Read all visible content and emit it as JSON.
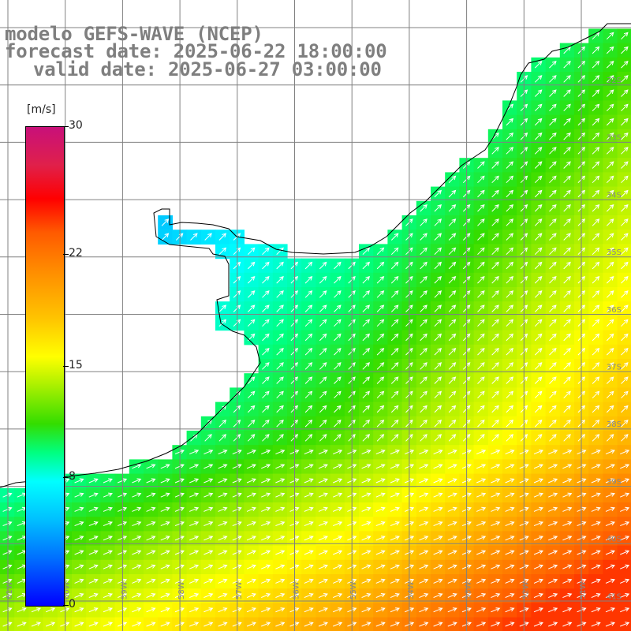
{
  "title": {
    "line1": "modelo GEFS-WAVE (NCEP)",
    "line2": "forecast date: 2025-06-22 18:00:00",
    "line3": "valid date: 2025-06-27 03:00:00"
  },
  "colorbar": {
    "unit": "[m/s]",
    "ticks": [
      "30",
      "22",
      "15",
      "8",
      "0"
    ],
    "tick_values": [
      30,
      22,
      15,
      8,
      0
    ],
    "range": [
      0,
      30
    ],
    "colors": [
      "#0000ff",
      "#0070ff",
      "#00c0ff",
      "#00ffff",
      "#00ff80",
      "#33dd00",
      "#aaf000",
      "#ffff00",
      "#ffc400",
      "#ff8c00",
      "#ff5a00",
      "#ff0000",
      "#e0204a",
      "#c8107a"
    ]
  },
  "map": {
    "lon_range": [
      -61,
      -50
    ],
    "lat_range": [
      -41,
      -30
    ],
    "lat_labels": [
      "32S",
      "33S",
      "34S",
      "35S",
      "36S",
      "37S",
      "38S",
      "39S",
      "40S",
      "41S"
    ],
    "lon_labels": [
      "61W",
      "60W",
      "59W",
      "58W",
      "57W",
      "56W",
      "55W",
      "54W",
      "53W",
      "52W",
      "51W"
    ],
    "land_color": "#ffffff",
    "coast_color": "#000000",
    "grid_color": "#808080",
    "arrow_color": "#ffffff",
    "wind_direction": "toward north-east"
  }
}
